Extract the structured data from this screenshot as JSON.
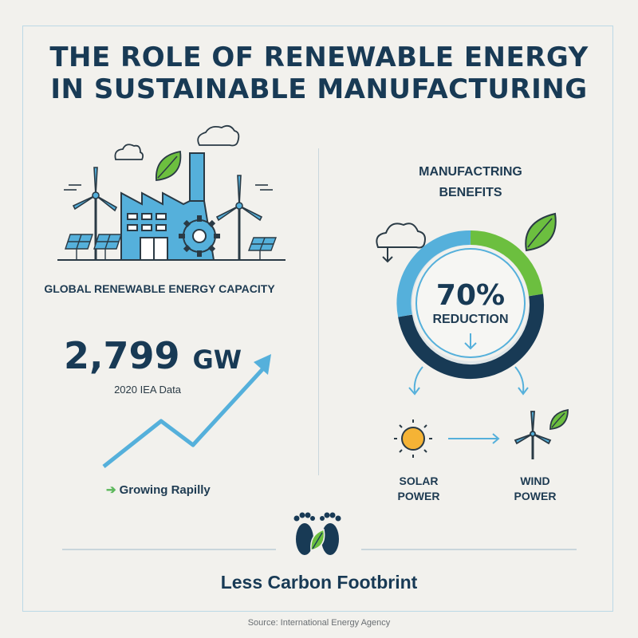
{
  "title": {
    "line1": "THE ROLE OF RENEWABLE ENERGY",
    "line2": "IN SUSTAINABLE MANUFACTURING"
  },
  "left": {
    "capacity_label": "GLOBAL RENEWABLE ENERGY CAPACITY",
    "capacity_value": "2,799",
    "capacity_unit": "GW",
    "data_note": "2020 IEA Data",
    "trend_label": "Growing Rapilly",
    "trend_arrow": "➔"
  },
  "right": {
    "benefits_title_line1": "MANUFACTRING",
    "benefits_title_line2": "BENEFITS",
    "reduction_percent": "70%",
    "reduction_label": "REDUCTION",
    "solar_line1": "SOLAR",
    "solar_line2": "POWER",
    "wind_line1": "WIND",
    "wind_line2": "POWER"
  },
  "footer": {
    "footprint_label": "Less Carbon Footbrint",
    "source": "Source: International Energy Agency"
  },
  "colors": {
    "navy": "#183a55",
    "light_blue": "#55b0db",
    "green": "#6cbf3f",
    "sun": "#f5b335"
  },
  "icons": [
    "factory-icon",
    "wind-turbine-icon",
    "solar-panel-icon",
    "leaf-icon",
    "cloud-icon",
    "gear-icon",
    "sun-icon",
    "footprints-icon",
    "trend-arrow-icon"
  ]
}
